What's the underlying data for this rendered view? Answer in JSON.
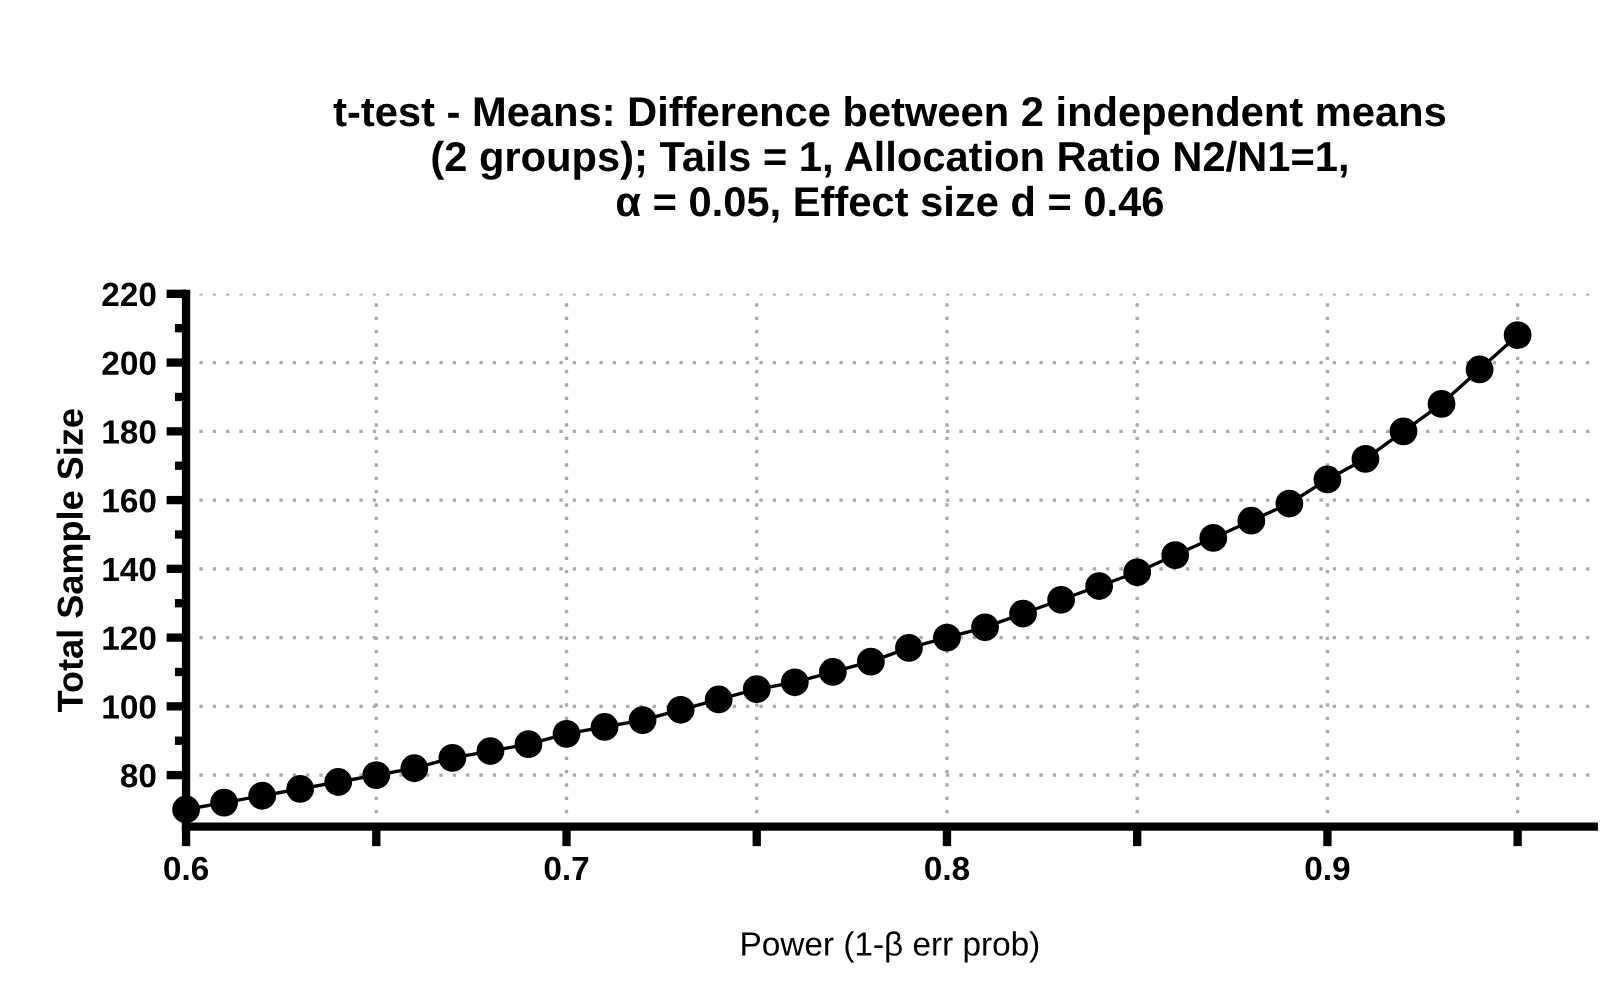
{
  "chart_data": {
    "type": "line",
    "title": "t-test - Means: Difference between 2 independent means\n(2 groups); Tails = 1, Allocation Ratio N2/N1=1,\nα = 0.05, Effect size d = 0.46",
    "xlabel": "Power (1-β err prob)",
    "ylabel": "Total Sample Size",
    "x": [
      0.6,
      0.61,
      0.62,
      0.63,
      0.64,
      0.65,
      0.66,
      0.67,
      0.68,
      0.69,
      0.7,
      0.71,
      0.72,
      0.73,
      0.74,
      0.75,
      0.76,
      0.77,
      0.78,
      0.79,
      0.8,
      0.81,
      0.82,
      0.83,
      0.84,
      0.85,
      0.86,
      0.87,
      0.88,
      0.89,
      0.9,
      0.91,
      0.92,
      0.93,
      0.94,
      0.95
    ],
    "series": [
      {
        "color": "#000000",
        "values": [
          70,
          72,
          74,
          76,
          78,
          80,
          82,
          85,
          87,
          89,
          92,
          94,
          96,
          99,
          102,
          105,
          107,
          110,
          113,
          117,
          120,
          123,
          127,
          131,
          135,
          139,
          144,
          149,
          154,
          159,
          166,
          172,
          180,
          188,
          198,
          208
        ]
      }
    ],
    "marker": "circle",
    "line_style": "solid",
    "grid": true,
    "xlim": [
      0.6,
      0.97
    ],
    "ylim": [
      65,
      220
    ],
    "xticks": [
      0.6,
      {
        "value": 0.65,
        "label": null
      },
      0.7,
      {
        "value": 0.75,
        "label": null
      },
      0.8,
      {
        "value": 0.85,
        "label": null
      },
      0.9,
      {
        "value": 0.95,
        "label": null
      }
    ],
    "yticks": [
      80,
      {
        "value": 90,
        "label": null
      },
      100,
      {
        "value": 110,
        "label": null
      },
      120,
      {
        "value": 130,
        "label": null
      },
      140,
      {
        "value": 150,
        "label": null
      },
      160,
      {
        "value": 170,
        "label": null
      },
      180,
      {
        "value": 190,
        "label": null
      },
      200,
      {
        "value": 210,
        "label": null
      },
      220
    ]
  }
}
